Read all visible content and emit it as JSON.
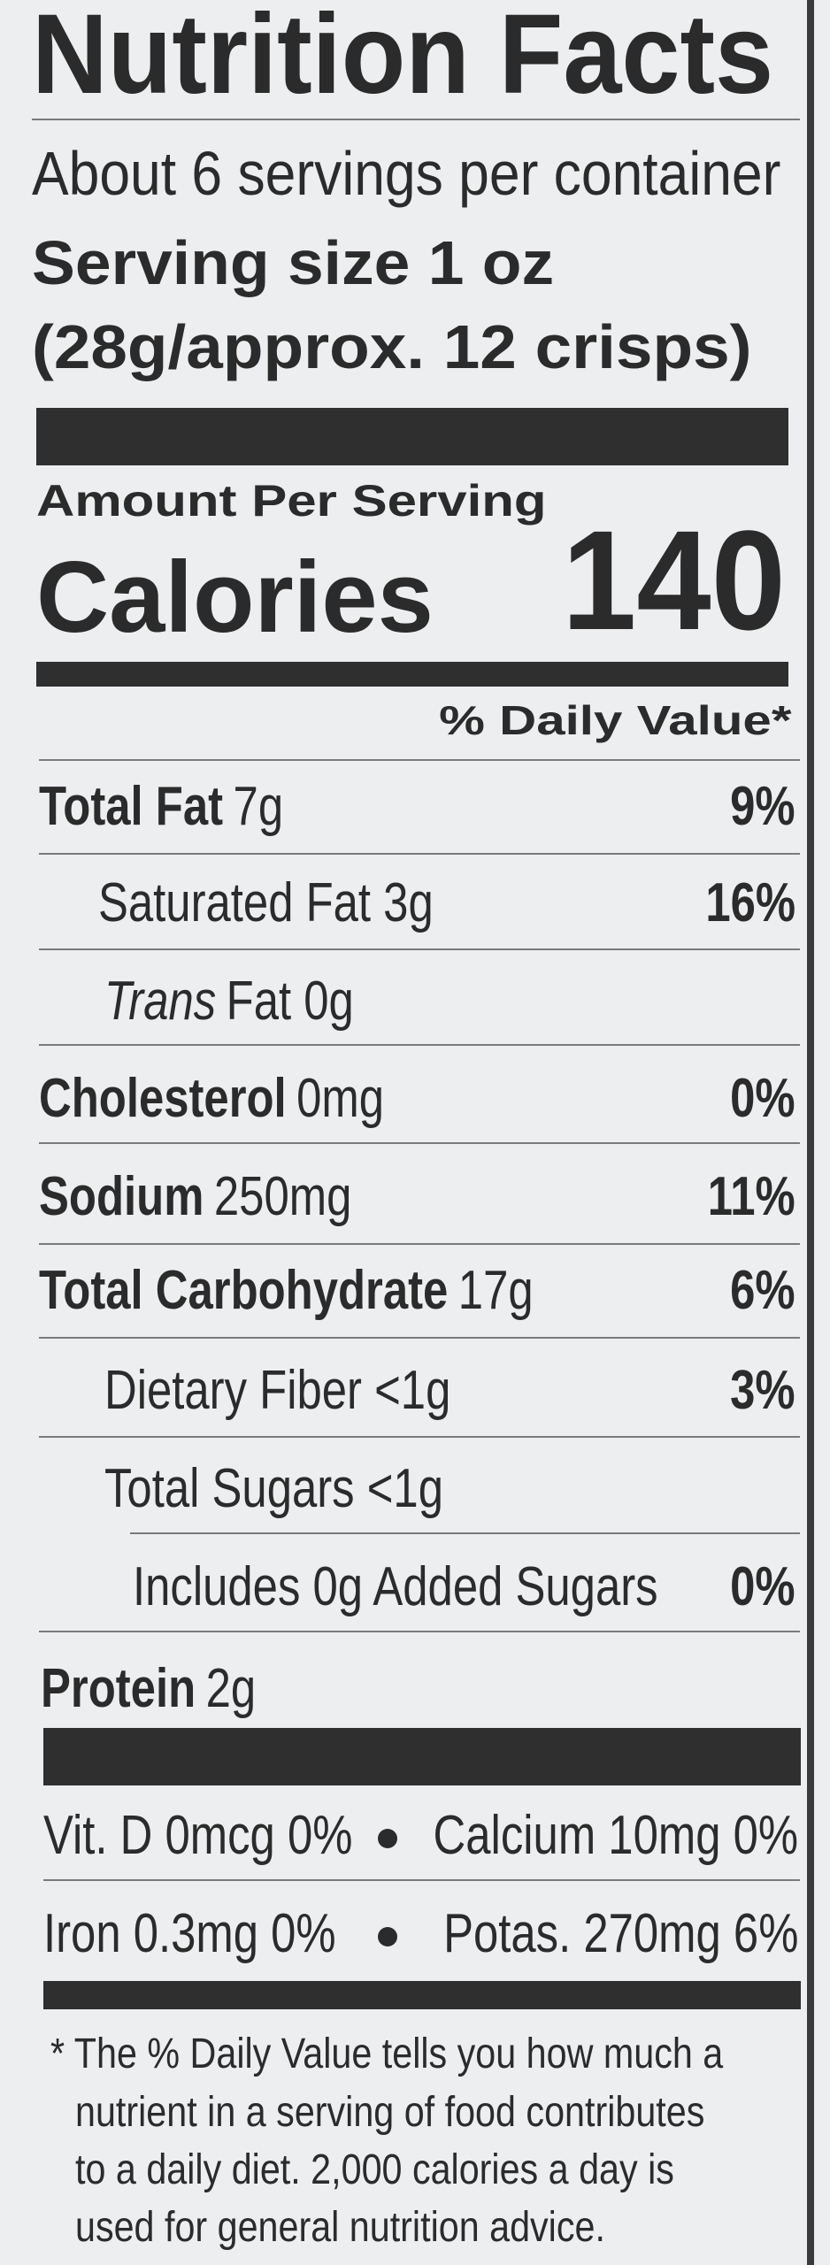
{
  "header": {
    "title": "Nutrition Facts",
    "servings": "About 6 servings per container",
    "serving_size": "Serving size 1 oz",
    "serving_detail": "(28g/approx. 12 crisps)"
  },
  "calories": {
    "label_small": "Amount Per Serving",
    "label": "Calories",
    "value": 140
  },
  "daily_value_header": "% Daily Value*",
  "rows": [
    {
      "name": "Total Fat",
      "amount": "7g",
      "dv": "9%"
    },
    {
      "name": "Saturated Fat 3g",
      "dv": "16%"
    },
    {
      "name_italic": "Trans",
      "name": "Fat 0g"
    },
    {
      "name": "Cholesterol",
      "amount": "0mg",
      "dv": "0%"
    },
    {
      "name": "Sodium",
      "amount": "250mg",
      "dv": "11%"
    },
    {
      "name": "Total Carbohydrate",
      "amount": "17g",
      "dv": "6%"
    },
    {
      "name": "Dietary Fiber <1g",
      "dv": "3%"
    },
    {
      "name": "Total Sugars <1g"
    },
    {
      "name": "Includes 0g Added Sugars",
      "dv": "0%"
    },
    {
      "name": "Protein",
      "amount": "2g"
    }
  ],
  "micronutrients": [
    [
      "Vit. D 0mcg 0%",
      "Calcium 10mg 0%"
    ],
    [
      "Iron 0.3mg 0%",
      "Potas. 270mg 6%"
    ]
  ],
  "footnote": [
    "* The % Daily Value tells you how much a",
    "nutrient in a serving of food contributes",
    "to a daily diet. 2,000 calories a day is",
    "used for general nutrition advice."
  ]
}
